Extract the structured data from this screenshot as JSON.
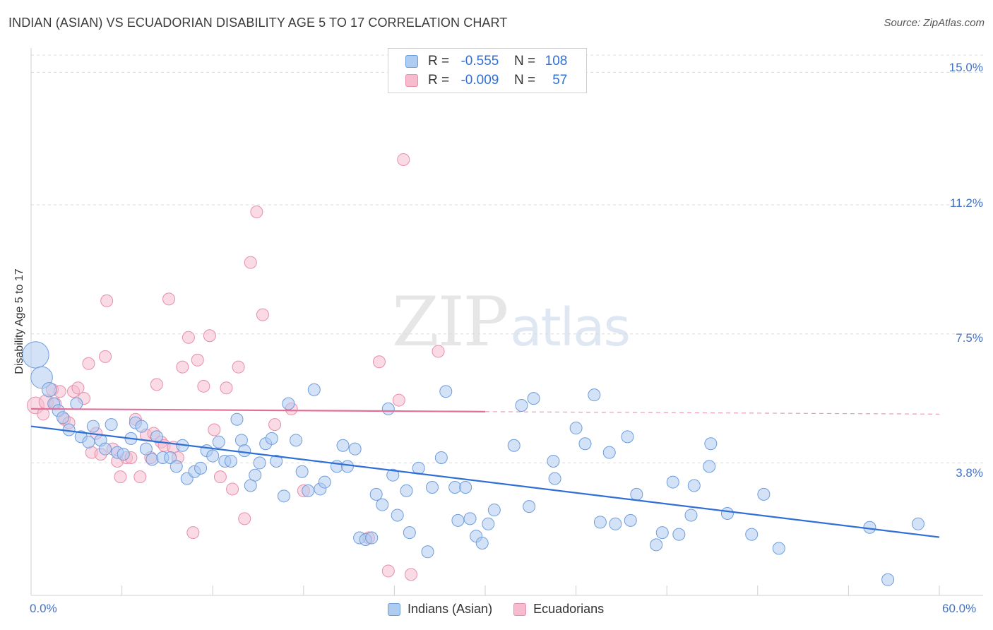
{
  "header": {
    "title": "INDIAN (ASIAN) VS ECUADORIAN DISABILITY AGE 5 TO 17 CORRELATION CHART",
    "source": "Source: ZipAtlas.com"
  },
  "watermark": {
    "zip": "ZIP",
    "atlas": "atlas"
  },
  "legend": {
    "rows": [
      {
        "r_label": "R =",
        "r_value": "-0.555",
        "n_label": "N =",
        "n_value": "108"
      },
      {
        "r_label": "R =",
        "r_value": "-0.009",
        "n_label": "N =",
        "n_value": "57"
      }
    ]
  },
  "colors": {
    "blue_fill": "#aecbf0",
    "blue_stroke": "#6d9ddd",
    "blue_line": "#2f6fd6",
    "pink_fill": "#f6bccd",
    "pink_stroke": "#e88fab",
    "pink_line": "#e0709a",
    "grid": "#dcdcdc",
    "tick_text": "#4472c4"
  },
  "chart_data": {
    "type": "scatter",
    "title": "INDIAN (ASIAN) VS ECUADORIAN DISABILITY AGE 5 TO 17 CORRELATION CHART",
    "xlabel": "",
    "ylabel": "Disability Age 5 to 17",
    "xlim": [
      0,
      60
    ],
    "ylim": [
      0,
      15.7
    ],
    "x_tick_labels": [
      "0.0%",
      "60.0%"
    ],
    "y_ticks": [
      3.8,
      7.5,
      11.2,
      15.0
    ],
    "y_tick_labels": [
      "3.8%",
      "7.5%",
      "11.2%",
      "15.0%"
    ],
    "grid": true,
    "legend_position": "top-center",
    "series": [
      {
        "name": "Indians (Asian)",
        "r": -0.555,
        "n": 108,
        "trend": {
          "x0": 0,
          "y0": 4.85,
          "x1": 60,
          "y1": 1.67
        },
        "points": [
          [
            0.3,
            6.9,
            2.2
          ],
          [
            0.7,
            6.25,
            1.8
          ],
          [
            1.2,
            5.9,
            1.2
          ],
          [
            1.5,
            5.5,
            1.0
          ],
          [
            1.8,
            5.3,
            1.0
          ],
          [
            2.1,
            5.1,
            1.0
          ],
          [
            2.5,
            4.75,
            1.0
          ],
          [
            3.0,
            5.5,
            1.0
          ],
          [
            3.3,
            4.55,
            1.0
          ],
          [
            3.8,
            4.4,
            1.0
          ],
          [
            4.1,
            4.85,
            1.0
          ],
          [
            4.6,
            4.45,
            1.0
          ],
          [
            4.9,
            4.2,
            1.0
          ],
          [
            5.3,
            4.9,
            1.0
          ],
          [
            5.7,
            4.1,
            1.0
          ],
          [
            6.1,
            4.05,
            1.0
          ],
          [
            6.6,
            4.5,
            1.0
          ],
          [
            6.9,
            4.95,
            1.0
          ],
          [
            7.3,
            4.85,
            1.0
          ],
          [
            7.6,
            4.2,
            1.0
          ],
          [
            8.0,
            3.9,
            1.0
          ],
          [
            8.3,
            4.55,
            1.0
          ],
          [
            8.7,
            3.95,
            1.0
          ],
          [
            9.2,
            3.95,
            1.0
          ],
          [
            9.6,
            3.7,
            1.0
          ],
          [
            10.0,
            4.3,
            1.0
          ],
          [
            10.3,
            3.35,
            1.0
          ],
          [
            10.8,
            3.55,
            1.0
          ],
          [
            11.2,
            3.65,
            1.0
          ],
          [
            11.6,
            4.15,
            1.0
          ],
          [
            12.0,
            4.0,
            1.0
          ],
          [
            12.4,
            4.4,
            1.0
          ],
          [
            12.8,
            3.85,
            1.0
          ],
          [
            13.2,
            3.85,
            1.0
          ],
          [
            13.6,
            5.05,
            1.0
          ],
          [
            13.9,
            4.45,
            1.0
          ],
          [
            14.1,
            4.15,
            1.0
          ],
          [
            14.5,
            3.15,
            1.0
          ],
          [
            14.8,
            3.45,
            1.0
          ],
          [
            15.1,
            3.8,
            1.0
          ],
          [
            15.5,
            4.35,
            1.0
          ],
          [
            15.9,
            4.5,
            1.0
          ],
          [
            16.2,
            3.85,
            1.0
          ],
          [
            16.7,
            2.85,
            1.0
          ],
          [
            17.0,
            5.5,
            1.0
          ],
          [
            17.5,
            4.45,
            1.0
          ],
          [
            17.9,
            3.55,
            1.0
          ],
          [
            18.3,
            3.0,
            1.0
          ],
          [
            18.7,
            5.9,
            1.0
          ],
          [
            19.1,
            3.05,
            1.0
          ],
          [
            19.4,
            3.25,
            1.0
          ],
          [
            20.2,
            3.7,
            1.0
          ],
          [
            20.6,
            4.3,
            1.0
          ],
          [
            20.9,
            3.7,
            1.0
          ],
          [
            21.4,
            4.2,
            1.0
          ],
          [
            21.7,
            1.65,
            1.0
          ],
          [
            22.1,
            1.6,
            1.0
          ],
          [
            22.5,
            1.65,
            1.0
          ],
          [
            22.8,
            2.9,
            1.0
          ],
          [
            23.2,
            2.6,
            1.0
          ],
          [
            23.6,
            5.35,
            1.0
          ],
          [
            23.9,
            3.45,
            1.0
          ],
          [
            24.2,
            2.3,
            1.0
          ],
          [
            24.8,
            3.0,
            1.0
          ],
          [
            25.0,
            1.8,
            1.0
          ],
          [
            25.6,
            3.65,
            1.0
          ],
          [
            26.2,
            1.25,
            1.0
          ],
          [
            26.5,
            3.1,
            1.0
          ],
          [
            27.1,
            3.95,
            1.0
          ],
          [
            27.4,
            5.85,
            1.0
          ],
          [
            28.0,
            3.1,
            1.0
          ],
          [
            28.2,
            2.15,
            1.0
          ],
          [
            28.7,
            3.1,
            1.0
          ],
          [
            29.0,
            2.2,
            1.0
          ],
          [
            29.4,
            1.7,
            1.0
          ],
          [
            29.8,
            1.5,
            1.0
          ],
          [
            30.2,
            2.05,
            1.0
          ],
          [
            30.6,
            2.45,
            1.0
          ],
          [
            31.9,
            4.3,
            1.0
          ],
          [
            32.4,
            5.45,
            1.0
          ],
          [
            32.9,
            2.55,
            1.0
          ],
          [
            33.2,
            5.65,
            1.0
          ],
          [
            34.6,
            3.35,
            1.0
          ],
          [
            34.5,
            3.85,
            1.0
          ],
          [
            36.0,
            4.8,
            1.0
          ],
          [
            36.6,
            4.35,
            1.0
          ],
          [
            37.2,
            5.75,
            1.0
          ],
          [
            37.6,
            2.1,
            1.0
          ],
          [
            38.2,
            4.1,
            1.0
          ],
          [
            38.6,
            2.05,
            1.0
          ],
          [
            39.4,
            4.55,
            1.0
          ],
          [
            39.6,
            2.15,
            1.0
          ],
          [
            40.0,
            2.9,
            1.0
          ],
          [
            41.3,
            1.45,
            1.0
          ],
          [
            41.7,
            1.8,
            1.0
          ],
          [
            42.4,
            3.25,
            1.0
          ],
          [
            42.8,
            1.75,
            1.0
          ],
          [
            43.6,
            2.3,
            1.0
          ],
          [
            43.8,
            3.15,
            1.0
          ],
          [
            44.8,
            3.7,
            1.0
          ],
          [
            44.9,
            4.35,
            1.0
          ],
          [
            46.0,
            2.35,
            1.0
          ],
          [
            47.6,
            1.75,
            1.0
          ],
          [
            48.4,
            2.9,
            1.0
          ],
          [
            49.4,
            1.35,
            1.0
          ],
          [
            55.4,
            1.95,
            1.0
          ],
          [
            56.6,
            0.45,
            1.0
          ],
          [
            58.6,
            2.05,
            1.0
          ]
        ]
      },
      {
        "name": "Ecuadorians",
        "r": -0.009,
        "n": 57,
        "trend": {
          "x0": 0,
          "y0": 5.35,
          "x1": 30,
          "y1": 5.27,
          "dashed_to_x": 60,
          "dashed_to_y": 5.2
        },
        "points": [
          [
            0.3,
            5.45,
            1.4
          ],
          [
            0.8,
            5.2,
            1.0
          ],
          [
            1.0,
            5.55,
            1.2
          ],
          [
            1.4,
            5.9,
            1.0
          ],
          [
            1.6,
            5.5,
            1.0
          ],
          [
            1.9,
            5.85,
            1.0
          ],
          [
            2.2,
            5.05,
            1.0
          ],
          [
            2.5,
            4.95,
            1.0
          ],
          [
            2.8,
            5.85,
            1.0
          ],
          [
            3.1,
            5.95,
            1.0
          ],
          [
            3.5,
            5.65,
            1.0
          ],
          [
            3.8,
            6.65,
            1.0
          ],
          [
            4.0,
            4.1,
            1.0
          ],
          [
            4.3,
            4.65,
            1.0
          ],
          [
            4.6,
            4.05,
            1.0
          ],
          [
            4.9,
            6.85,
            1.0
          ],
          [
            5.0,
            8.45,
            1.0
          ],
          [
            5.4,
            4.2,
            1.0
          ],
          [
            5.7,
            3.85,
            1.0
          ],
          [
            5.9,
            3.4,
            1.0
          ],
          [
            6.3,
            3.95,
            1.0
          ],
          [
            6.6,
            3.95,
            1.0
          ],
          [
            6.9,
            5.05,
            1.0
          ],
          [
            7.2,
            3.4,
            1.0
          ],
          [
            7.6,
            4.6,
            1.0
          ],
          [
            7.9,
            3.95,
            1.0
          ],
          [
            8.1,
            4.65,
            1.0
          ],
          [
            8.3,
            6.05,
            1.0
          ],
          [
            8.6,
            4.4,
            1.0
          ],
          [
            8.8,
            4.3,
            1.0
          ],
          [
            9.1,
            8.5,
            1.0
          ],
          [
            9.4,
            4.25,
            1.0
          ],
          [
            9.7,
            3.95,
            1.0
          ],
          [
            10.0,
            6.55,
            1.0
          ],
          [
            10.4,
            7.4,
            1.0
          ],
          [
            10.7,
            1.8,
            1.0
          ],
          [
            11.0,
            6.75,
            1.0
          ],
          [
            11.4,
            6.0,
            1.0
          ],
          [
            11.8,
            7.45,
            1.0
          ],
          [
            12.1,
            4.75,
            1.0
          ],
          [
            12.5,
            3.4,
            1.0
          ],
          [
            12.9,
            5.95,
            1.0
          ],
          [
            13.3,
            3.05,
            1.0
          ],
          [
            13.7,
            6.55,
            1.0
          ],
          [
            14.1,
            2.2,
            1.0
          ],
          [
            14.5,
            9.55,
            1.0
          ],
          [
            14.9,
            11.0,
            1.0
          ],
          [
            15.3,
            8.05,
            1.0
          ],
          [
            16.1,
            4.9,
            1.0
          ],
          [
            17.2,
            5.35,
            1.0
          ],
          [
            18.0,
            3.0,
            1.0
          ],
          [
            22.3,
            1.65,
            1.0
          ],
          [
            23.0,
            6.7,
            1.0
          ],
          [
            23.6,
            0.7,
            1.0
          ],
          [
            24.3,
            5.6,
            1.0
          ],
          [
            24.6,
            12.5,
            1.0
          ],
          [
            25.1,
            0.6,
            1.0
          ],
          [
            26.9,
            7.0,
            1.0
          ]
        ]
      }
    ]
  },
  "bottom_legend": {
    "items": [
      "Indians (Asian)",
      "Ecuadorians"
    ]
  }
}
